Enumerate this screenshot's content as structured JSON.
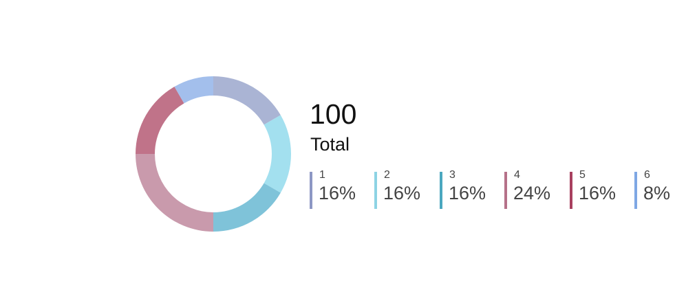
{
  "summary": {
    "total_value": "100",
    "total_label": "Total"
  },
  "chart_data": {
    "type": "pie",
    "variant": "donut",
    "categories": [
      "1",
      "2",
      "3",
      "4",
      "5",
      "6"
    ],
    "values": [
      16,
      16,
      16,
      24,
      16,
      8
    ],
    "percent_labels": [
      "16%",
      "16%",
      "16%",
      "24%",
      "16%",
      "8%"
    ],
    "total": 100,
    "legend_position": "right",
    "slice_colors": [
      "#aab4d4",
      "#a3e0ef",
      "#7fc3d9",
      "#c99aac",
      "#c07389",
      "#a3bfec"
    ],
    "legend_colors": [
      "#8d97c4",
      "#8dd3e4",
      "#4aa7bf",
      "#b57189",
      "#a8405f",
      "#7ea7e4"
    ]
  }
}
